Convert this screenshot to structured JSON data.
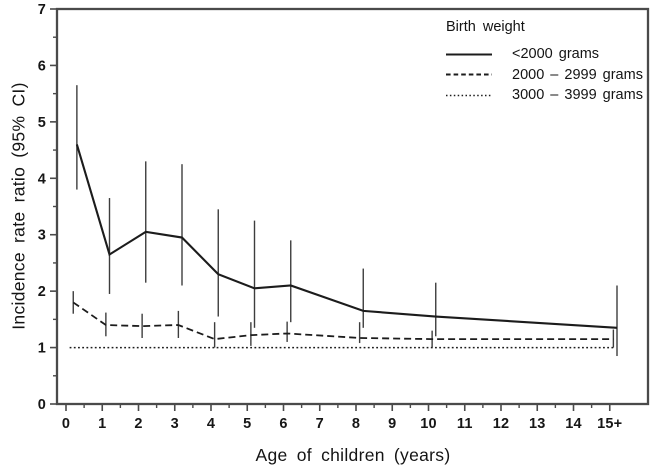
{
  "chart_data": {
    "type": "line",
    "title": "",
    "xlabel": "Age of children (years)",
    "ylabel": "Incidence rate ratio (95% CI)",
    "xlim": [
      -0.25,
      16.05
    ],
    "ylim": [
      0,
      7
    ],
    "grid": false,
    "x_axis": {
      "major_tick_values": [
        0,
        1,
        2,
        3,
        4,
        5,
        6,
        7,
        8,
        9,
        10,
        11,
        12,
        13,
        14,
        15
      ],
      "major_tick_labels": [
        "0",
        "1",
        "2",
        "3",
        "4",
        "5",
        "6",
        "7",
        "8",
        "9",
        "10",
        "11",
        "12",
        "13",
        "14",
        "15+"
      ],
      "minor_tick_values": [
        0.5,
        1.5,
        2.5,
        3.5,
        4.5,
        5.5,
        6.5,
        7.5,
        8.5,
        9.5,
        10.5,
        11.5,
        12.5,
        13.5,
        14.5
      ]
    },
    "y_axis": {
      "major_tick_values": [
        0,
        1,
        2,
        3,
        4,
        5,
        6,
        7
      ],
      "major_tick_labels": [
        "0",
        "1",
        "2",
        "3",
        "4",
        "5",
        "6",
        "7"
      ],
      "minor_tick_values": [
        0.5,
        1.5,
        2.5,
        3.5,
        4.5,
        5.5,
        6.5
      ]
    },
    "legend": {
      "title": "Birth weight",
      "position": "top-right",
      "entries": [
        {
          "label": "<2000 grams",
          "style": "solid"
        },
        {
          "label": "2000 – 2999 grams",
          "style": "dashed"
        },
        {
          "label": "3000 – 3999 grams",
          "style": "dotted"
        }
      ]
    },
    "series": [
      {
        "name": "<2000 grams",
        "style": "solid",
        "x": [
          0.3,
          1.2,
          2.2,
          3.2,
          4.2,
          5.2,
          6.2,
          8.2,
          10.2,
          15.2
        ],
        "y": [
          4.6,
          2.65,
          3.05,
          2.95,
          2.3,
          2.05,
          2.1,
          1.65,
          1.55,
          1.35
        ],
        "ci_low": [
          3.8,
          1.95,
          2.15,
          2.1,
          1.55,
          1.35,
          1.45,
          1.35,
          1.2,
          0.85
        ],
        "ci_high": [
          5.65,
          3.65,
          4.3,
          4.25,
          3.45,
          3.25,
          2.9,
          2.4,
          2.15,
          2.1
        ]
      },
      {
        "name": "2000 – 2999 grams",
        "style": "dashed",
        "x": [
          0.2,
          1.1,
          2.1,
          3.1,
          4.1,
          5.1,
          6.1,
          8.1,
          10.1,
          15.1
        ],
        "y": [
          1.8,
          1.4,
          1.38,
          1.4,
          1.15,
          1.22,
          1.25,
          1.17,
          1.15,
          1.15
        ],
        "ci_low": [
          1.6,
          1.2,
          1.17,
          1.17,
          1.0,
          1.03,
          1.1,
          1.08,
          1.0,
          1.0
        ],
        "ci_high": [
          2.0,
          1.62,
          1.6,
          1.65,
          1.45,
          1.45,
          1.46,
          1.45,
          1.3,
          1.32
        ]
      },
      {
        "name": "3000 – 3999 grams",
        "style": "dotted",
        "x": [
          0.1,
          15.1
        ],
        "y": [
          1.0,
          1.0
        ],
        "ci_low": [],
        "ci_high": []
      }
    ],
    "colors": {
      "line": "#1c1c1c",
      "error_bar": "#3d3d3d",
      "frame": "#4a4a4a",
      "text": "#161616",
      "background": "#ffffff"
    }
  }
}
